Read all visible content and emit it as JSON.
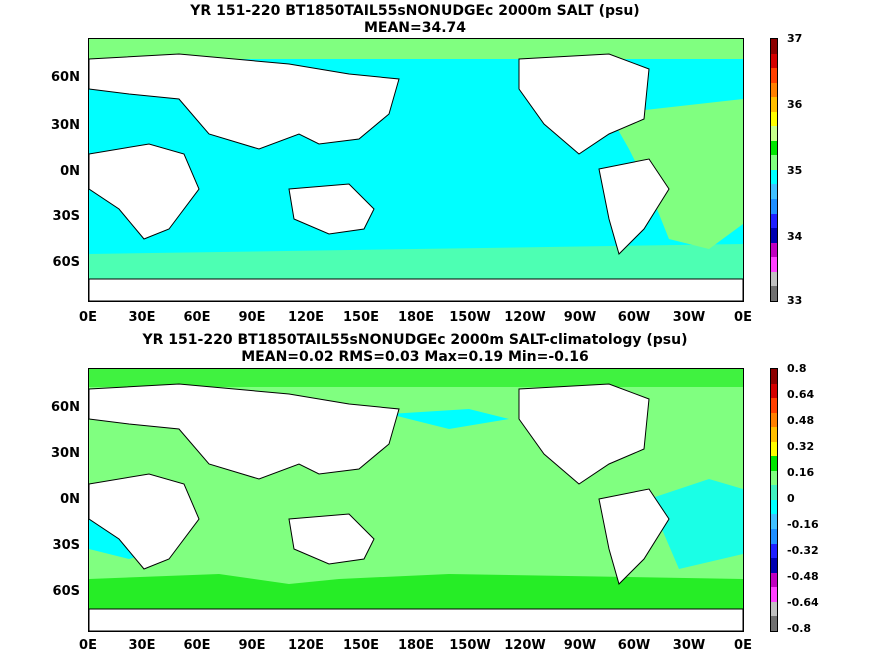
{
  "panel1": {
    "title": "YR 151-220 BT1850TAIL55sNONUDGEc 2000m SALT (psu)",
    "stats": "MEAN=34.74",
    "lat_labels": [
      "60N",
      "30N",
      "0N",
      "30S",
      "60S"
    ],
    "lon_labels": [
      "0E",
      "30E",
      "60E",
      "90E",
      "120E",
      "150E",
      "180E",
      "150W",
      "120W",
      "90W",
      "60W",
      "30W",
      "0E"
    ],
    "colorbar_labels": [
      "37",
      "36",
      "35",
      "34",
      "33"
    ],
    "colorbar_colors": [
      "#8b0000",
      "#d40000",
      "#ff4000",
      "#ff8000",
      "#ffbf00",
      "#ffff00",
      "#c8ff8c",
      "#00e600",
      "#80ff80",
      "#00ffff",
      "#40c0ff",
      "#1f8fff",
      "#2020ff",
      "#0000b0",
      "#c000c0",
      "#ff40ff",
      "#c0c0c0",
      "#707070"
    ]
  },
  "panel2": {
    "title": "YR 151-220 BT1850TAIL55sNONUDGEc 2000m SALT-climatology (psu)",
    "stats": "MEAN=0.02   RMS=0.03   Max=0.19   Min=-0.16",
    "lat_labels": [
      "60N",
      "30N",
      "0N",
      "30S",
      "60S"
    ],
    "lon_labels": [
      "0E",
      "30E",
      "60E",
      "90E",
      "120E",
      "150E",
      "180E",
      "150W",
      "120W",
      "90W",
      "60W",
      "30W",
      "0E"
    ],
    "colorbar_labels": [
      "0.8",
      "0.64",
      "0.48",
      "0.32",
      "0.16",
      "0",
      "-0.16",
      "-0.32",
      "-0.48",
      "-0.64",
      "-0.8"
    ],
    "colorbar_colors": [
      "#8b0000",
      "#d40000",
      "#ff4000",
      "#ff8000",
      "#ffbf00",
      "#ffff00",
      "#00e600",
      "#80ff80",
      "#40f0c0",
      "#00ffff",
      "#40c0ff",
      "#1f8fff",
      "#2020ff",
      "#0000b0",
      "#c000c0",
      "#ff40ff",
      "#c0c0c0",
      "#707070"
    ]
  },
  "colors": {
    "ocean_cyan": "#00ffff",
    "ocean_light_green": "#80ff80",
    "ocean_green": "#00e600",
    "land": "#ffffff",
    "coast": "#000000"
  }
}
